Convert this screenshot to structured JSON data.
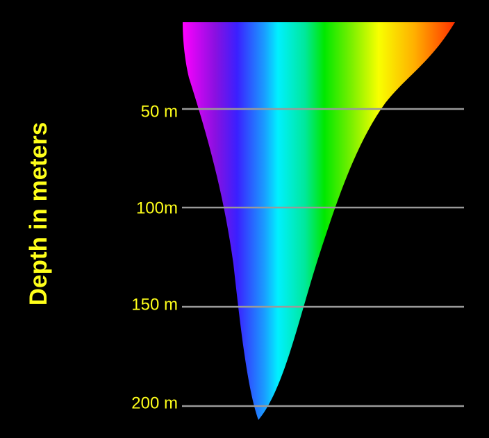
{
  "axis_label": "Depth in meters",
  "depth_labels": [
    "50 m",
    "100m",
    "150 m",
    "200 m"
  ]
}
